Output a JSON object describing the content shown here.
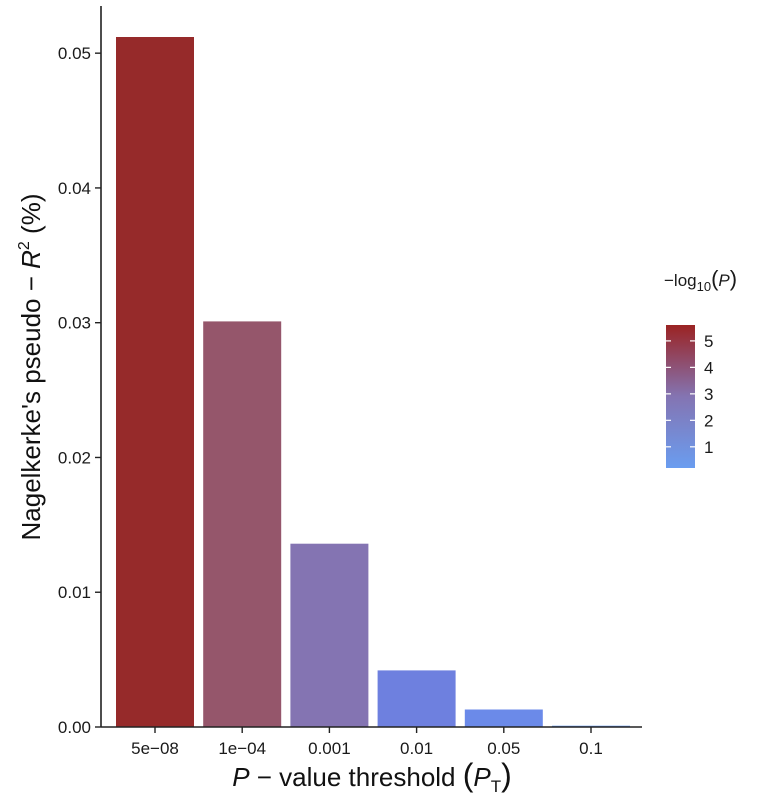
{
  "chart_data": {
    "type": "bar",
    "categories": [
      "5e−08",
      "1e−04",
      "0.001",
      "0.01",
      "0.05",
      "0.1"
    ],
    "values": [
      0.0512,
      0.0301,
      0.0136,
      0.0042,
      0.0013,
      0.0001
    ],
    "neg_log10_p": [
      5.3,
      4.0,
      2.5,
      1.2,
      0.9,
      0.3
    ],
    "bar_colors": [
      "#962a2a",
      "#95566b",
      "#8474b2",
      "#6e80df",
      "#6b8ae9",
      "#6a9df0"
    ],
    "ylim": [
      0,
      0.0535
    ],
    "yticks": [
      0.0,
      0.01,
      0.02,
      0.03,
      0.04,
      0.05
    ],
    "ytick_labels": [
      "0.00",
      "0.01",
      "0.02",
      "0.03",
      "0.04",
      "0.05"
    ],
    "xlabel": {
      "p_italic": "P",
      "mid": " − value threshold ",
      "paren_open": "(",
      "pt_italic": "P",
      "pt_sub": "T",
      "paren_close": ")"
    },
    "ylabel": {
      "main": "Nagelkerke's pseudo − ",
      "r_italic": "R",
      "sup": "2",
      "tail": " (%)"
    },
    "legend": {
      "title_prefix": "−log",
      "title_sub": "10",
      "title_open": "(",
      "title_var": "P",
      "title_close": ")",
      "breaks": [
        "5",
        "4",
        "3",
        "2",
        "1"
      ],
      "break_values": [
        5,
        4,
        3,
        2,
        1
      ],
      "range": [
        0.2,
        5.6
      ],
      "color_low": "#6a9df0",
      "color_mid": "#8474b2",
      "color_high": "#9b2323"
    },
    "grid": false
  }
}
